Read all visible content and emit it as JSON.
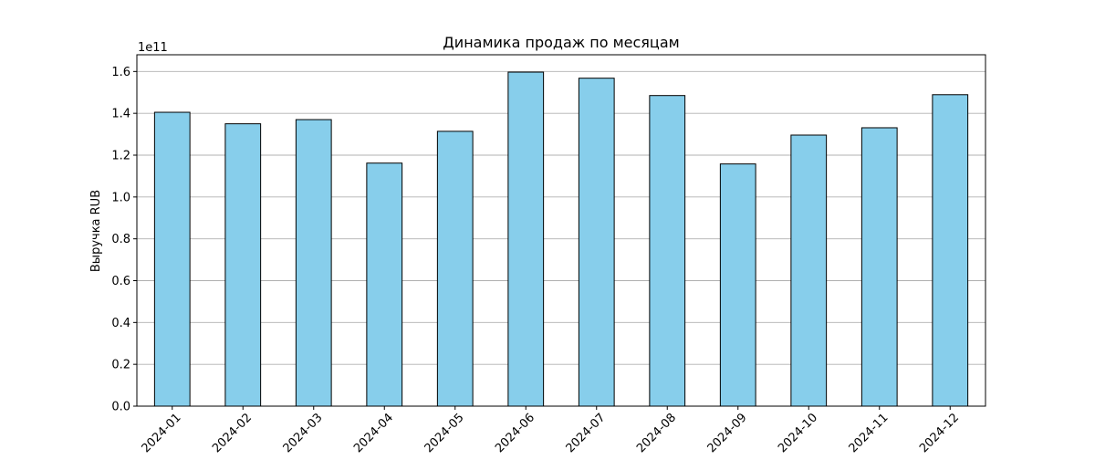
{
  "chart_data": {
    "type": "bar",
    "title": "Динамика продаж по месяцам",
    "xlabel": "",
    "ylabel": "Выручка RUB",
    "offset_label": "1e11",
    "categories": [
      "2024-01",
      "2024-02",
      "2024-03",
      "2024-04",
      "2024-05",
      "2024-06",
      "2024-07",
      "2024-08",
      "2024-09",
      "2024-10",
      "2024-11",
      "2024-12"
    ],
    "values": [
      140500000000.0,
      135000000000.0,
      137000000000.0,
      116200000000.0,
      131400000000.0,
      159700000000.0,
      156800000000.0,
      148500000000.0,
      115800000000.0,
      129600000000.0,
      133100000000.0,
      148900000000.0
    ],
    "ylim": [
      0,
      168000000000.0
    ],
    "yticks": [
      0,
      20000000000.0,
      40000000000.0,
      60000000000.0,
      80000000000.0,
      100000000000.0,
      120000000000.0,
      140000000000.0,
      160000000000.0
    ],
    "ytick_labels": [
      "0.0",
      "0.2",
      "0.4",
      "0.6",
      "0.8",
      "1.0",
      "1.2",
      "1.4",
      "1.6"
    ],
    "grid": "y",
    "legend": "none",
    "colors": {
      "bar_fill": "#87ceeb",
      "bar_edge": "#000000",
      "grid": "#b0b0b0",
      "axis": "#000000"
    }
  }
}
